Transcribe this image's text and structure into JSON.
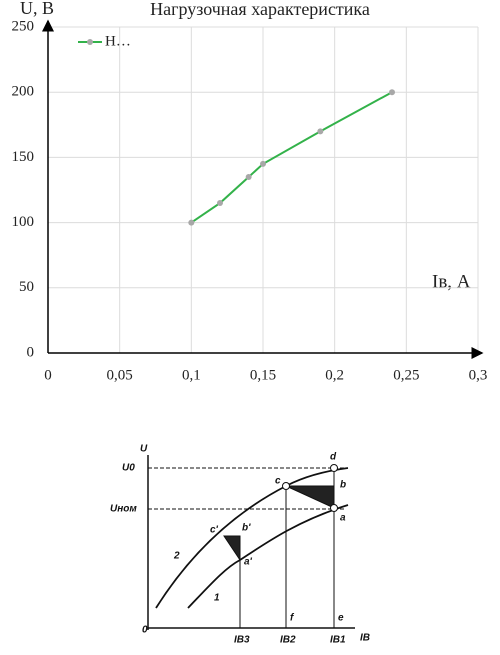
{
  "chart_data": {
    "type": "line",
    "title": "Нагрузочная характеристика",
    "y_label": "U, В",
    "x_label": "Iв, А",
    "x": [
      0.1,
      0.12,
      0.14,
      0.15,
      0.19,
      0.24
    ],
    "series": [
      {
        "name": "Н…",
        "color": "#33b24a",
        "marker_color": "#a8a8a8",
        "values": [
          100,
          115,
          135,
          145,
          170,
          200
        ]
      }
    ],
    "xlim": [
      0,
      0.3
    ],
    "ylim": [
      0,
      250
    ],
    "xticks": [
      0,
      {
        "value": 0.05,
        "label": "0,05"
      },
      {
        "value": 0.1,
        "label": "0,1"
      },
      {
        "value": 0.15,
        "label": "0,15"
      },
      {
        "value": 0.2,
        "label": "0,2"
      },
      {
        "value": 0.25,
        "label": "0,25"
      },
      {
        "value": 0.3,
        "label": "0,3"
      }
    ],
    "yticks": [
      0,
      50,
      100,
      150,
      200,
      250
    ],
    "grid": true,
    "legend": "top-left"
  },
  "figure": {
    "labels": {
      "u": "U",
      "u0": "U0",
      "unom": "Uном",
      "origin": "0",
      "d": "d",
      "c": "c",
      "b": "b",
      "a": "a",
      "c1": "c'",
      "b1": "b'",
      "a1": "a'",
      "curve2": "2",
      "curve1": "1",
      "ib3": "IB3",
      "ib2": "IB2",
      "ib1": "IB1",
      "ib": "IB",
      "f": "f",
      "e": "e"
    }
  }
}
